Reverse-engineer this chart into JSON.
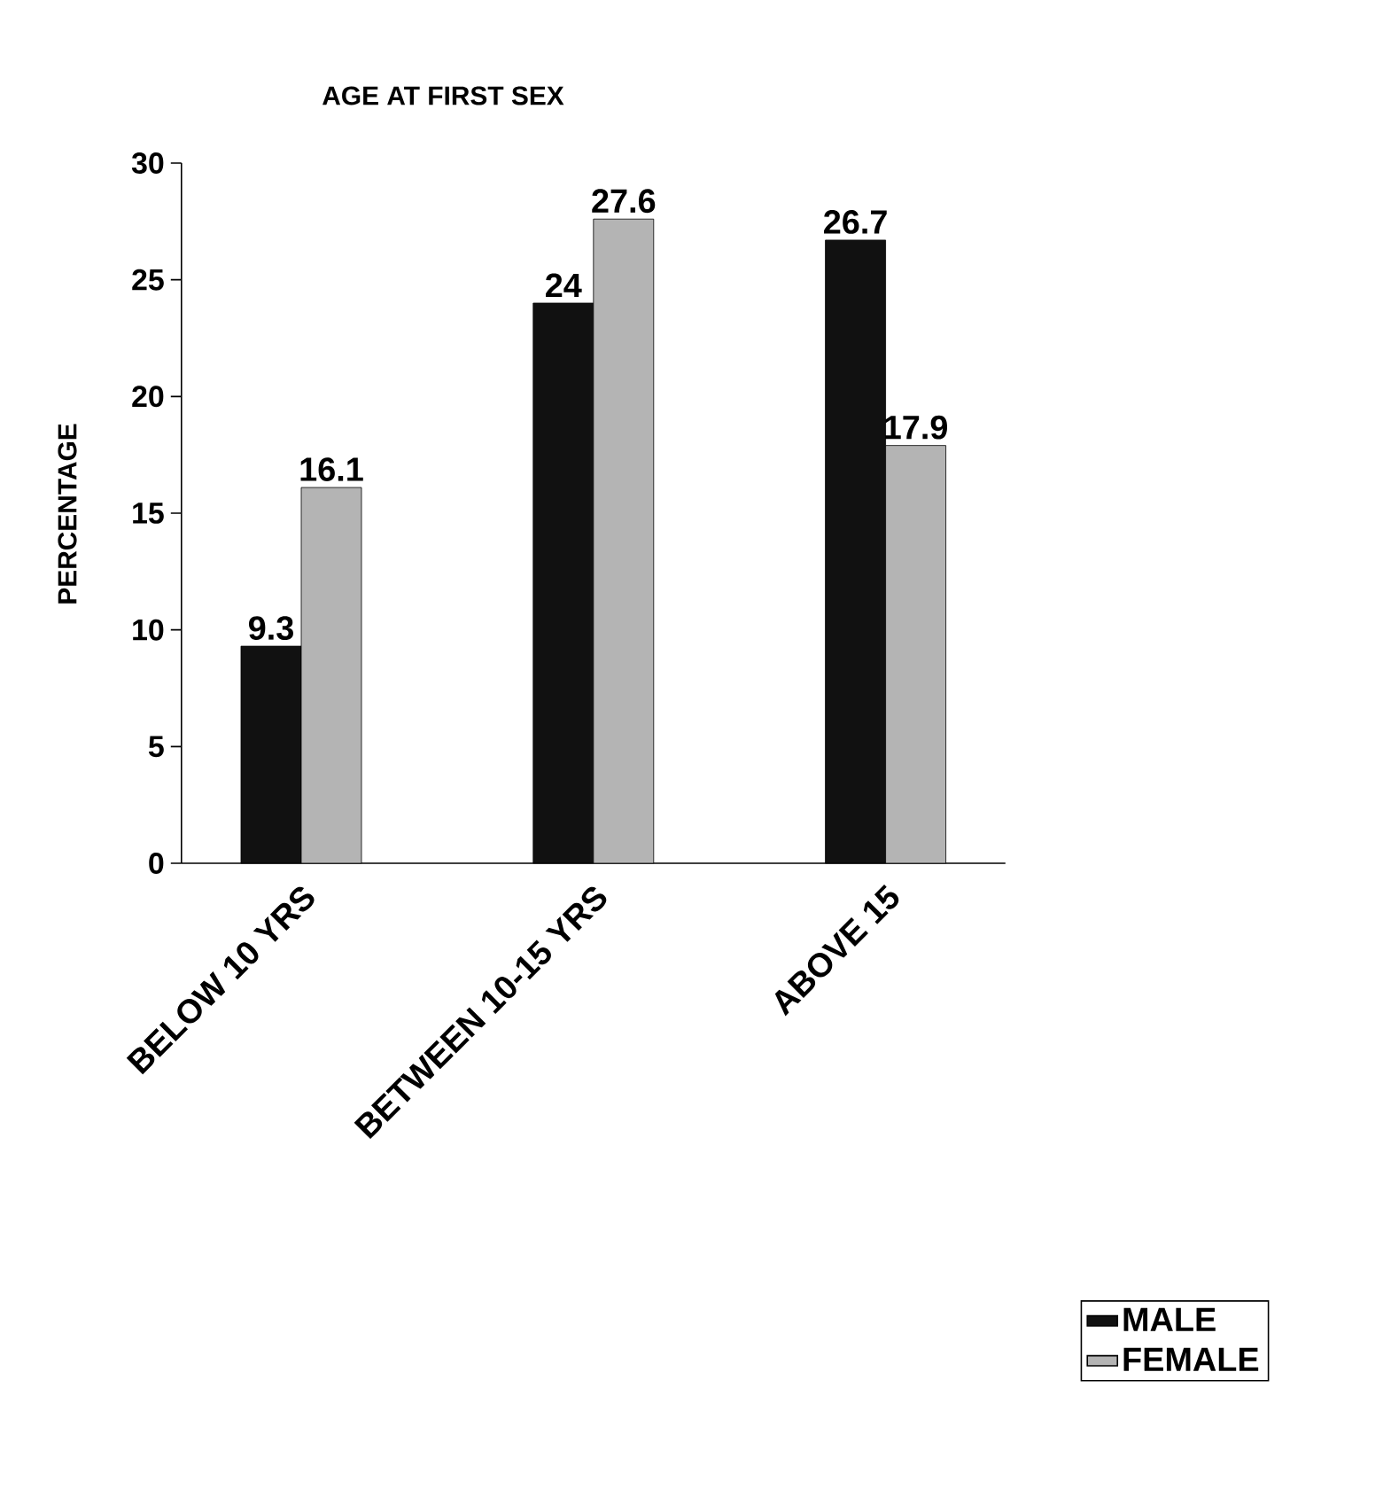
{
  "chart_data": {
    "type": "bar",
    "title": "AGE AT FIRST SEX",
    "ylabel": "PERCENTAGE",
    "categories": [
      "BELOW 10 YRS",
      "BETWEEN 10-15 YRS",
      "ABOVE 15"
    ],
    "series": [
      {
        "name": "MALE",
        "color": "#111111",
        "values": [
          9.3,
          24,
          26.7
        ]
      },
      {
        "name": "FEMALE",
        "color": "#b4b4b4",
        "values": [
          16.1,
          27.6,
          17.9
        ]
      }
    ],
    "ylim": [
      0,
      30
    ],
    "yticks": [
      0,
      5,
      10,
      15,
      20,
      25,
      30
    ],
    "data_labels": true,
    "legend": "bottom right"
  }
}
